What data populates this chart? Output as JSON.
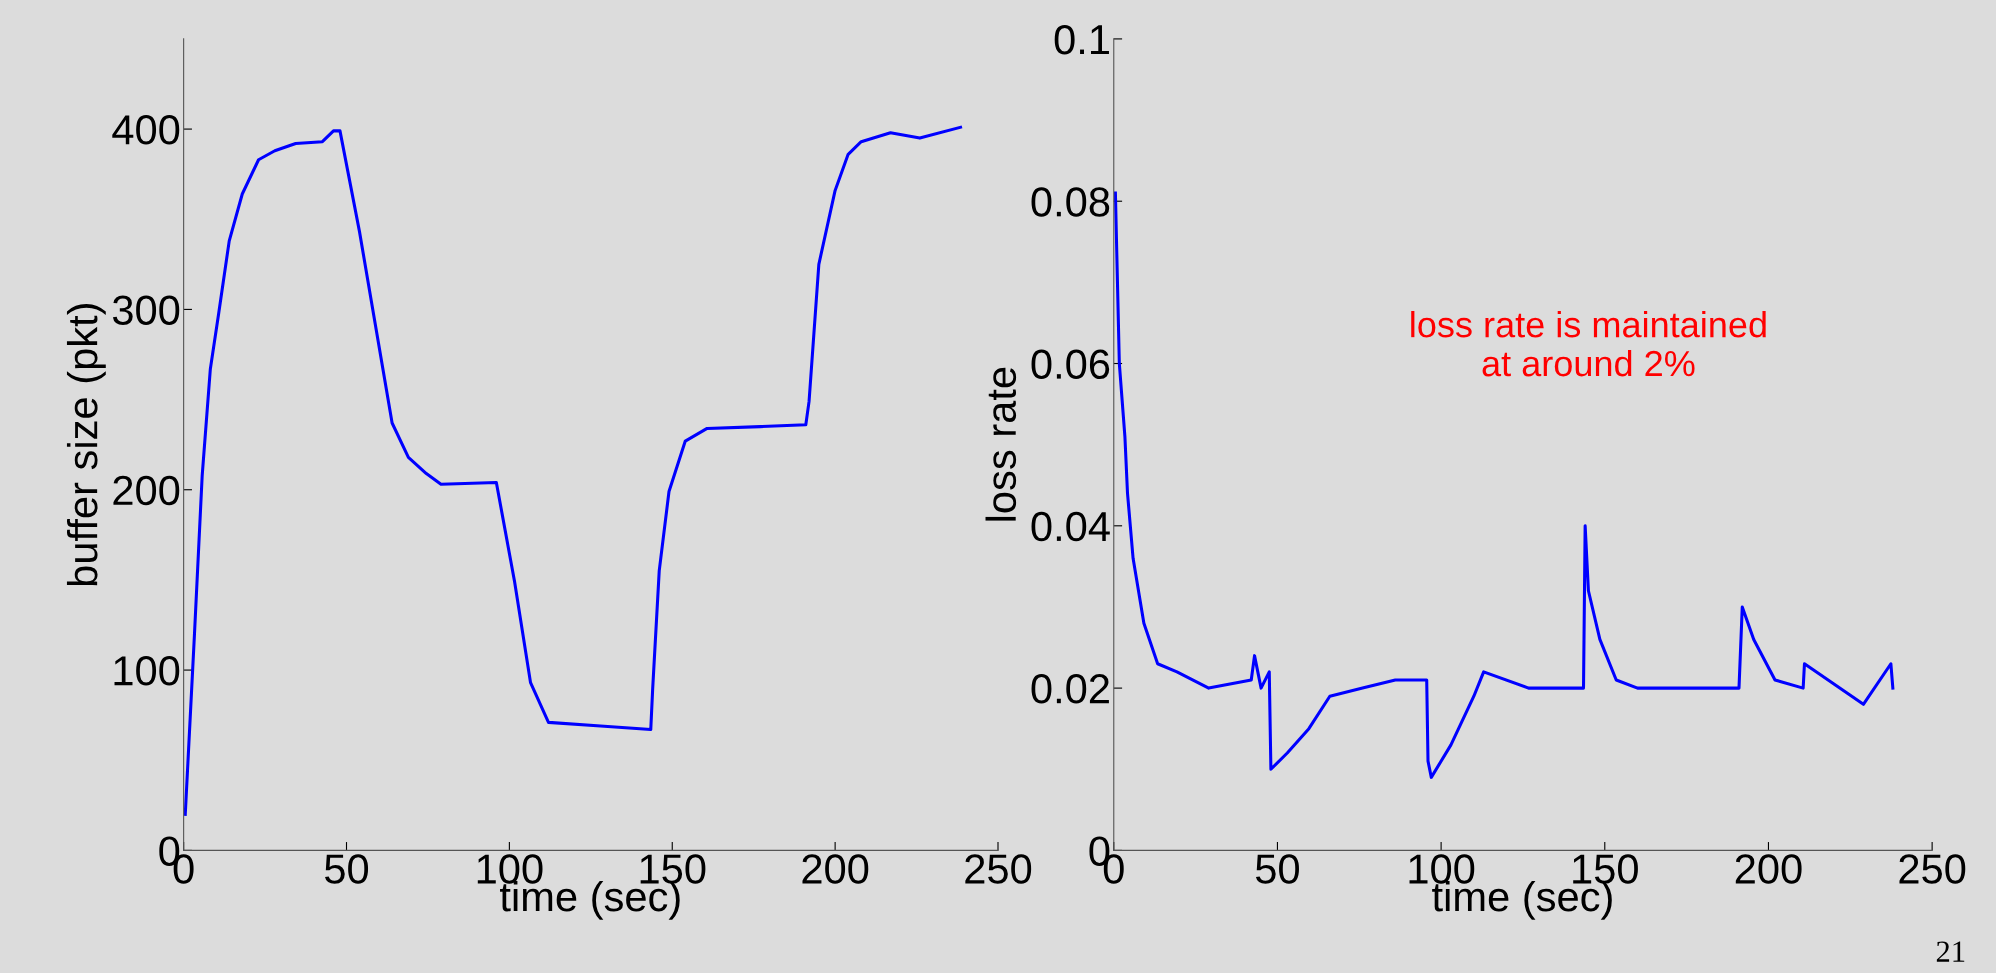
{
  "chart_data": [
    {
      "type": "line",
      "xlabel": "time (sec)",
      "ylabel": "buffer size (pkt)",
      "xlim": [
        0,
        250
      ],
      "xticks": [
        0,
        50,
        100,
        150,
        200,
        250
      ],
      "ylim": [
        0,
        450
      ],
      "yticks": [
        0,
        100,
        200,
        300,
        400
      ],
      "grid": false,
      "series": [
        {
          "color": "#0000ff",
          "x": [
            0.5,
            3.3,
            5.7,
            8.2,
            10.7,
            14,
            18,
            23,
            28,
            34.4,
            42.6,
            46,
            48,
            54,
            59,
            64,
            69,
            74.5,
            79,
            96,
            101.6,
            106.5,
            112,
            128,
            143.4,
            144,
            146,
            149,
            154,
            160.7,
            177,
            191,
            192,
            195,
            200,
            204,
            208,
            217,
            226,
            238.5
          ],
          "values": [
            20,
            119,
            208,
            267,
            297,
            338,
            364,
            383,
            388,
            392,
            393,
            399,
            399,
            343,
            290,
            237,
            218,
            209,
            203,
            204,
            149,
            93,
            71,
            69,
            67,
            90,
            155,
            199,
            227,
            234,
            235,
            236,
            249,
            325,
            366,
            386,
            393,
            398,
            395,
            401
          ]
        }
      ]
    },
    {
      "type": "line",
      "xlabel": "time (sec)",
      "ylabel": "loss rate",
      "xlim": [
        0,
        250
      ],
      "xticks": [
        0,
        50,
        100,
        150,
        200,
        250
      ],
      "ylim": [
        0,
        0.1
      ],
      "yticks": [
        0,
        0.02,
        0.04,
        0.06,
        0.08,
        0.1
      ],
      "grid": false,
      "annotations": [
        "loss rate is maintained\nat around 2%",
        "21"
      ],
      "series": [
        {
          "color": "#0000ff",
          "x": [
            0.5,
            1.7,
            3.4,
            4.2,
            5.9,
            9.2,
            13.4,
            19.3,
            29,
            42,
            43,
            45,
            47.5,
            48,
            53,
            59.6,
            66,
            76,
            86,
            95.6,
            96,
            97,
            103,
            110,
            113,
            126.7,
            143.5,
            144,
            145,
            148.5,
            153.5,
            160,
            177,
            191,
            192,
            195.5,
            202,
            210.6,
            211,
            229,
            237.4,
            238
          ],
          "values": [
            0.081,
            0.06,
            0.051,
            0.044,
            0.036,
            0.028,
            0.023,
            0.022,
            0.02,
            0.021,
            0.024,
            0.02,
            0.022,
            0.01,
            0.012,
            0.015,
            0.019,
            0.02,
            0.021,
            0.021,
            0.011,
            0.009,
            0.013,
            0.019,
            0.022,
            0.02,
            0.02,
            0.04,
            0.032,
            0.026,
            0.021,
            0.02,
            0.02,
            0.02,
            0.03,
            0.026,
            0.021,
            0.02,
            0.023,
            0.018,
            0.023,
            0.02
          ]
        }
      ]
    }
  ]
}
